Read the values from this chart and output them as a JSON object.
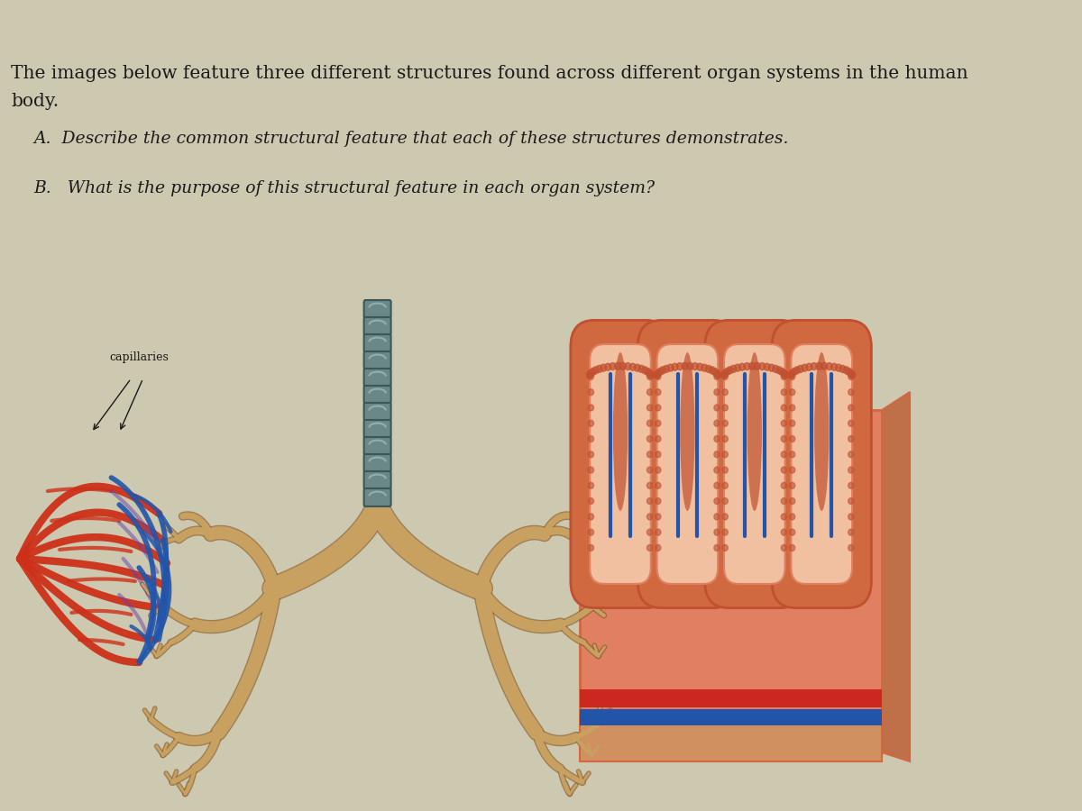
{
  "bg_color": "#cdc8b0",
  "text_color": "#1a1a1a",
  "title_line1": "The images below feature three different structures found across different organ systems in the human",
  "title_line2": "body.",
  "question_a": "A.  Describe the common structural feature that each of these structures demonstrates.",
  "question_b": "B.   What is the purpose of this structural feature in each organ system?",
  "label_capillaries": "capillaries",
  "title_fontsize": 14.5,
  "question_fontsize": 13.5,
  "label_fontsize": 9,
  "fig_width": 12.0,
  "fig_height": 9.0,
  "dpi": 100,
  "red_vessel": "#cc3018",
  "blue_vessel": "#2255aa",
  "tan_branch": "#c8a060",
  "tan_dark": "#8b6030",
  "trachea_fill": "#6a8888",
  "trachea_edge": "#3a5858",
  "villi_outer": "#e07050",
  "villi_inner": "#c05030",
  "villi_bg": "#e09070",
  "villi_peach": "#d08060",
  "villi_light": "#f0c0a0",
  "villi_red_band": "#cc2820",
  "villi_blue_band": "#2255aa",
  "villi_base": "#c09070"
}
